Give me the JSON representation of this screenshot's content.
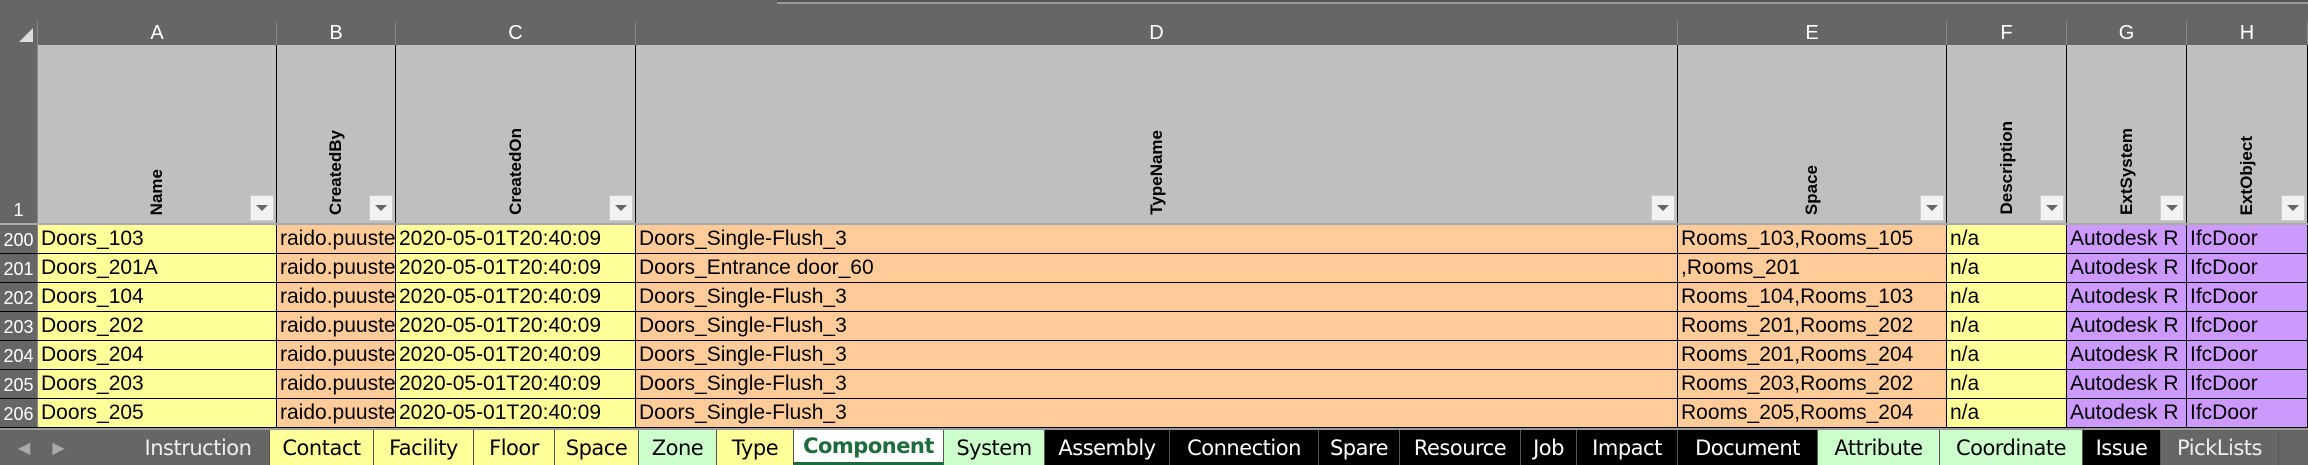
{
  "columns": [
    "A",
    "B",
    "C",
    "D",
    "E",
    "F",
    "G",
    "H"
  ],
  "headers": [
    "Name",
    "CreatedBy",
    "CreatedOn",
    "TypeName",
    "Space",
    "Description",
    "ExtSystem",
    "ExtObject"
  ],
  "header_row_number": "1",
  "rows": [
    {
      "n": "200",
      "cells": [
        "Doors_103",
        "raido.puuste",
        "2020-05-01T20:40:09",
        "Doors_Single-Flush_3",
        "Rooms_103,Rooms_105",
        "n/a",
        "Autodesk R",
        "IfcDoor"
      ]
    },
    {
      "n": "201",
      "cells": [
        "Doors_201A",
        "raido.puuste",
        "2020-05-01T20:40:09",
        "Doors_Entrance door_60",
        ",Rooms_201",
        "n/a",
        "Autodesk R",
        "IfcDoor"
      ]
    },
    {
      "n": "202",
      "cells": [
        "Doors_104",
        "raido.puuste",
        "2020-05-01T20:40:09",
        "Doors_Single-Flush_3",
        "Rooms_104,Rooms_103",
        "n/a",
        "Autodesk R",
        "IfcDoor"
      ]
    },
    {
      "n": "203",
      "cells": [
        "Doors_202",
        "raido.puuste",
        "2020-05-01T20:40:09",
        "Doors_Single-Flush_3",
        "Rooms_201,Rooms_202",
        "n/a",
        "Autodesk R",
        "IfcDoor"
      ]
    },
    {
      "n": "204",
      "cells": [
        "Doors_204",
        "raido.puuste",
        "2020-05-01T20:40:09",
        "Doors_Single-Flush_3",
        "Rooms_201,Rooms_204",
        "n/a",
        "Autodesk R",
        "IfcDoor"
      ]
    },
    {
      "n": "205",
      "cells": [
        "Doors_203",
        "raido.puuste",
        "2020-05-01T20:40:09",
        "Doors_Single-Flush_3",
        "Rooms_203,Rooms_202",
        "n/a",
        "Autodesk R",
        "IfcDoor"
      ]
    },
    {
      "n": "206",
      "cells": [
        "Doors_205",
        "raido.puuste",
        "2020-05-01T20:40:09",
        "Doors_Single-Flush_3",
        "Rooms_205,Rooms_204",
        "n/a",
        "Autodesk R",
        "IfcDoor"
      ]
    }
  ],
  "cell_colors": [
    "#ffff99",
    "#ffcc99",
    "#ffff99",
    "#ffcc99",
    "#ffcc99",
    "#ffff99",
    "#cc99ff",
    "#cc99ff"
  ],
  "tabs": [
    {
      "label": "Instruction",
      "style": "n",
      "w": 143
    },
    {
      "label": "Contact",
      "style": "y",
      "w": 104
    },
    {
      "label": "Facility",
      "style": "y",
      "w": 100
    },
    {
      "label": "Floor",
      "style": "y",
      "w": 81
    },
    {
      "label": "Space",
      "style": "y",
      "w": 84
    },
    {
      "label": "Zone",
      "style": "g",
      "w": 78
    },
    {
      "label": "Type",
      "style": "y",
      "w": 77
    },
    {
      "label": "Component",
      "style": "a",
      "w": 150
    },
    {
      "label": "System",
      "style": "g",
      "w": 101
    },
    {
      "label": "Assembly",
      "style": "b",
      "w": 125
    },
    {
      "label": "Connection",
      "style": "b",
      "w": 149
    },
    {
      "label": "Spare",
      "style": "b",
      "w": 81
    },
    {
      "label": "Resource",
      "style": "b",
      "w": 121
    },
    {
      "label": "Job",
      "style": "b",
      "w": 56
    },
    {
      "label": "Impact",
      "style": "b",
      "w": 101
    },
    {
      "label": "Document",
      "style": "b",
      "w": 140
    },
    {
      "label": "Attribute",
      "style": "g",
      "w": 122
    },
    {
      "label": "Coordinate",
      "style": "g",
      "w": 143
    },
    {
      "label": "Issue",
      "style": "b",
      "w": 78
    },
    {
      "label": "PickLists",
      "style": "n",
      "w": 118
    }
  ],
  "active_tab": "Component"
}
